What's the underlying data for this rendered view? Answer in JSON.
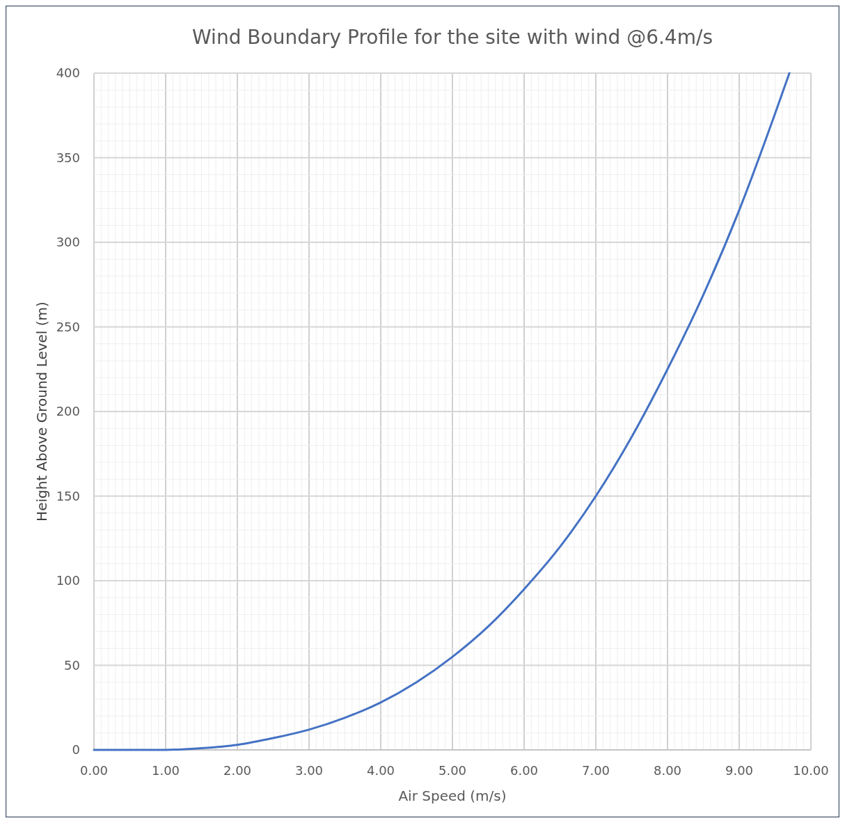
{
  "chart_data": {
    "type": "line",
    "title": "Wind Boundary Profile for the site with wind @6.4m/s",
    "xlabel": "Air Speed (m/s)",
    "ylabel": "Height Above Ground Level (m)",
    "grid": true,
    "marker": "none",
    "line_style": "solid",
    "xlim": [
      0,
      10
    ],
    "ylim": [
      0,
      400
    ],
    "xticks": [
      {
        "value": 0,
        "label": "0.00"
      },
      {
        "value": 0.1,
        "label": null
      },
      {
        "value": 0.2,
        "label": null
      },
      {
        "value": 0.3,
        "label": null
      },
      {
        "value": 0.4,
        "label": null
      },
      {
        "value": 0.5,
        "label": null
      },
      {
        "value": 0.6,
        "label": null
      },
      {
        "value": 0.7,
        "label": null
      },
      {
        "value": 0.8,
        "label": null
      },
      {
        "value": 0.9,
        "label": null
      },
      {
        "value": 1,
        "label": "1.00"
      },
      {
        "value": 1.1,
        "label": null
      },
      {
        "value": 1.2,
        "label": null
      },
      {
        "value": 1.3,
        "label": null
      },
      {
        "value": 1.4,
        "label": null
      },
      {
        "value": 1.5,
        "label": null
      },
      {
        "value": 1.6,
        "label": null
      },
      {
        "value": 1.7,
        "label": null
      },
      {
        "value": 1.8,
        "label": null
      },
      {
        "value": 1.9,
        "label": null
      },
      {
        "value": 2,
        "label": "2.00"
      },
      {
        "value": 2.1,
        "label": null
      },
      {
        "value": 2.2,
        "label": null
      },
      {
        "value": 2.3,
        "label": null
      },
      {
        "value": 2.4,
        "label": null
      },
      {
        "value": 2.5,
        "label": null
      },
      {
        "value": 2.6,
        "label": null
      },
      {
        "value": 2.7,
        "label": null
      },
      {
        "value": 2.8,
        "label": null
      },
      {
        "value": 2.9,
        "label": null
      },
      {
        "value": 3,
        "label": "3.00"
      },
      {
        "value": 3.1,
        "label": null
      },
      {
        "value": 3.2,
        "label": null
      },
      {
        "value": 3.3,
        "label": null
      },
      {
        "value": 3.4,
        "label": null
      },
      {
        "value": 3.5,
        "label": null
      },
      {
        "value": 3.6,
        "label": null
      },
      {
        "value": 3.7,
        "label": null
      },
      {
        "value": 3.8,
        "label": null
      },
      {
        "value": 3.9,
        "label": null
      },
      {
        "value": 4,
        "label": "4.00"
      },
      {
        "value": 4.1,
        "label": null
      },
      {
        "value": 4.2,
        "label": null
      },
      {
        "value": 4.3,
        "label": null
      },
      {
        "value": 4.4,
        "label": null
      },
      {
        "value": 4.5,
        "label": null
      },
      {
        "value": 4.6,
        "label": null
      },
      {
        "value": 4.7,
        "label": null
      },
      {
        "value": 4.8,
        "label": null
      },
      {
        "value": 4.9,
        "label": null
      },
      {
        "value": 5,
        "label": "5.00"
      },
      {
        "value": 5.1,
        "label": null
      },
      {
        "value": 5.2,
        "label": null
      },
      {
        "value": 5.3,
        "label": null
      },
      {
        "value": 5.4,
        "label": null
      },
      {
        "value": 5.5,
        "label": null
      },
      {
        "value": 5.6,
        "label": null
      },
      {
        "value": 5.7,
        "label": null
      },
      {
        "value": 5.8,
        "label": null
      },
      {
        "value": 5.9,
        "label": null
      },
      {
        "value": 6,
        "label": "6.00"
      },
      {
        "value": 6.1,
        "label": null
      },
      {
        "value": 6.2,
        "label": null
      },
      {
        "value": 6.3,
        "label": null
      },
      {
        "value": 6.4,
        "label": null
      },
      {
        "value": 6.5,
        "label": null
      },
      {
        "value": 6.6,
        "label": null
      },
      {
        "value": 6.7,
        "label": null
      },
      {
        "value": 6.8,
        "label": null
      },
      {
        "value": 6.9,
        "label": null
      },
      {
        "value": 7,
        "label": "7.00"
      },
      {
        "value": 7.1,
        "label": null
      },
      {
        "value": 7.2,
        "label": null
      },
      {
        "value": 7.3,
        "label": null
      },
      {
        "value": 7.4,
        "label": null
      },
      {
        "value": 7.5,
        "label": null
      },
      {
        "value": 7.6,
        "label": null
      },
      {
        "value": 7.7,
        "label": null
      },
      {
        "value": 7.8,
        "label": null
      },
      {
        "value": 7.9,
        "label": null
      },
      {
        "value": 8,
        "label": "8.00"
      },
      {
        "value": 8.1,
        "label": null
      },
      {
        "value": 8.2,
        "label": null
      },
      {
        "value": 8.3,
        "label": null
      },
      {
        "value": 8.4,
        "label": null
      },
      {
        "value": 8.5,
        "label": null
      },
      {
        "value": 8.6,
        "label": null
      },
      {
        "value": 8.7,
        "label": null
      },
      {
        "value": 8.8,
        "label": null
      },
      {
        "value": 8.9,
        "label": null
      },
      {
        "value": 9,
        "label": "9.00"
      },
      {
        "value": 9.1,
        "label": null
      },
      {
        "value": 9.2,
        "label": null
      },
      {
        "value": 9.3,
        "label": null
      },
      {
        "value": 9.4,
        "label": null
      },
      {
        "value": 9.5,
        "label": null
      },
      {
        "value": 9.6,
        "label": null
      },
      {
        "value": 9.7,
        "label": null
      },
      {
        "value": 9.8,
        "label": null
      },
      {
        "value": 9.9,
        "label": null
      },
      {
        "value": 10,
        "label": "10.00"
      }
    ],
    "yticks": [
      0,
      {
        "value": 10,
        "label": null
      },
      {
        "value": 20,
        "label": null
      },
      {
        "value": 30,
        "label": null
      },
      {
        "value": 40,
        "label": null
      },
      50,
      {
        "value": 60,
        "label": null
      },
      {
        "value": 70,
        "label": null
      },
      {
        "value": 80,
        "label": null
      },
      {
        "value": 90,
        "label": null
      },
      100,
      {
        "value": 110,
        "label": null
      },
      {
        "value": 120,
        "label": null
      },
      {
        "value": 130,
        "label": null
      },
      {
        "value": 140,
        "label": null
      },
      150,
      {
        "value": 160,
        "label": null
      },
      {
        "value": 170,
        "label": null
      },
      {
        "value": 180,
        "label": null
      },
      {
        "value": 190,
        "label": null
      },
      200,
      {
        "value": 210,
        "label": null
      },
      {
        "value": 220,
        "label": null
      },
      {
        "value": 230,
        "label": null
      },
      {
        "value": 240,
        "label": null
      },
      250,
      {
        "value": 260,
        "label": null
      },
      {
        "value": 270,
        "label": null
      },
      {
        "value": 280,
        "label": null
      },
      {
        "value": 290,
        "label": null
      },
      300,
      {
        "value": 310,
        "label": null
      },
      {
        "value": 320,
        "label": null
      },
      {
        "value": 330,
        "label": null
      },
      {
        "value": 340,
        "label": null
      },
      350,
      {
        "value": 360,
        "label": null
      },
      {
        "value": 370,
        "label": null
      },
      {
        "value": 380,
        "label": null
      },
      {
        "value": 390,
        "label": null
      },
      400
    ],
    "x": [
      0,
      0.5,
      1,
      1.5,
      2,
      2.5,
      3,
      3.5,
      4,
      4.5,
      5,
      5.5,
      6,
      6.5,
      7,
      7.5,
      8,
      8.5,
      9,
      9.5,
      9.7
    ],
    "series": [
      {
        "color": "#4472c4",
        "values": [
          0,
          0,
          0,
          1,
          3,
          7,
          12,
          19,
          28,
          40,
          55,
          73,
          95,
          120,
          150,
          185,
          225,
          269,
          319,
          376,
          400
        ]
      }
    ]
  }
}
